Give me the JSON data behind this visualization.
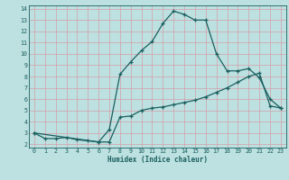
{
  "xlabel": "Humidex (Indice chaleur)",
  "bg_color": "#bde0e0",
  "grid_color": "#d4a0a8",
  "line_color": "#1a6060",
  "xlim": [
    -0.5,
    23.5
  ],
  "ylim": [
    1.7,
    14.3
  ],
  "xticks": [
    0,
    1,
    2,
    3,
    4,
    5,
    6,
    7,
    8,
    9,
    10,
    11,
    12,
    13,
    14,
    15,
    16,
    17,
    18,
    19,
    20,
    21,
    22,
    23
  ],
  "yticks": [
    2,
    3,
    4,
    5,
    6,
    7,
    8,
    9,
    10,
    11,
    12,
    13,
    14
  ],
  "line1_x": [
    0,
    1,
    2,
    3,
    4,
    5,
    6,
    7,
    8,
    9,
    10,
    11,
    12,
    13,
    14,
    15,
    16,
    17,
    18,
    19,
    20,
    21,
    22,
    23
  ],
  "line1_y": [
    3.0,
    2.5,
    2.5,
    2.6,
    2.4,
    2.3,
    2.2,
    2.2,
    4.4,
    4.5,
    5.0,
    5.2,
    5.3,
    5.5,
    5.7,
    5.9,
    6.2,
    6.6,
    7.0,
    7.5,
    8.0,
    8.3,
    5.4,
    5.2
  ],
  "line2_x": [
    0,
    6,
    7,
    8,
    9,
    10,
    11,
    12,
    13,
    14,
    15,
    16,
    17,
    18,
    19,
    20,
    21,
    22,
    23
  ],
  "line2_y": [
    3.0,
    2.2,
    3.3,
    8.2,
    9.3,
    10.3,
    11.1,
    12.7,
    13.8,
    13.5,
    13.0,
    13.0,
    10.0,
    8.5,
    8.5,
    8.7,
    7.9,
    6.0,
    5.2
  ]
}
